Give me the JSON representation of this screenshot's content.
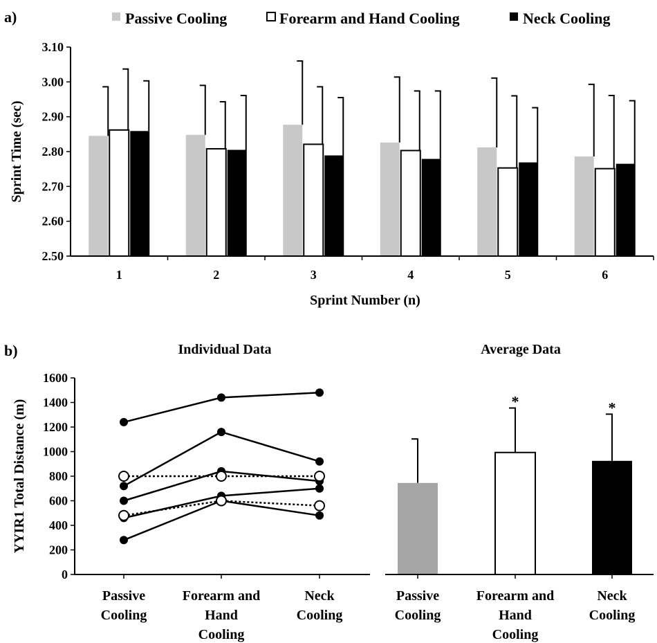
{
  "colors": {
    "passive": "#c8c8c8",
    "passive_b": "#a6a6a6",
    "forearm": "#ffffff",
    "neck": "#000000",
    "axis": "#000000"
  },
  "panel_a": {
    "label": "a)",
    "legend": [
      "Passive Cooling",
      "Forearm and Hand Cooling",
      "Neck Cooling"
    ]
  },
  "panel_b": {
    "label": "b)",
    "individual_title": "Individual Data",
    "average_title": "Average Data",
    "category_lines": [
      [
        "Passive",
        "Cooling"
      ],
      [
        "Forearm and",
        "Hand",
        "Cooling"
      ],
      [
        "Neck",
        "Cooling"
      ]
    ]
  },
  "chart_data": [
    {
      "id": "sprint-times",
      "type": "bar",
      "title": "",
      "xlabel": "Sprint Number (n)",
      "ylabel": "Sprint Time (sec)",
      "categories": [
        "1",
        "2",
        "3",
        "4",
        "5",
        "6"
      ],
      "ylim": [
        2.5,
        3.1
      ],
      "yticks": [
        "2.50",
        "2.60",
        "2.70",
        "2.80",
        "2.90",
        "3.00",
        "3.10"
      ],
      "legend_position": "top",
      "grid": false,
      "series": [
        {
          "name": "Passive Cooling",
          "color": "#c8c8c8",
          "values": [
            2.845,
            2.848,
            2.877,
            2.826,
            2.812,
            2.786
          ],
          "errors": [
            0.141,
            0.142,
            0.183,
            0.188,
            0.199,
            0.207
          ]
        },
        {
          "name": "Forearm and Hand Cooling",
          "color": "#ffffff",
          "values": [
            2.862,
            2.808,
            2.821,
            2.803,
            2.753,
            2.751
          ],
          "errors": [
            0.175,
            0.135,
            0.165,
            0.171,
            0.207,
            0.21
          ]
        },
        {
          "name": "Neck Cooling",
          "color": "#000000",
          "values": [
            2.859,
            2.805,
            2.789,
            2.779,
            2.769,
            2.765
          ],
          "errors": [
            0.144,
            0.156,
            0.166,
            0.195,
            0.157,
            0.181
          ]
        }
      ]
    },
    {
      "id": "individual-distance",
      "type": "line",
      "title": "Individual Data",
      "xlabel": "",
      "ylabel": "YYIR1 Total Distance (m)",
      "categories": [
        "Passive Cooling",
        "Forearm and Hand Cooling",
        "Neck Cooling"
      ],
      "ylim": [
        0,
        1600
      ],
      "yticks": [
        0,
        200,
        400,
        600,
        800,
        1000,
        1200,
        1400,
        1600
      ],
      "grid": false,
      "series": [
        {
          "values": [
            1240,
            1440,
            1480
          ],
          "marker": "filled",
          "style": "solid"
        },
        {
          "values": [
            720,
            1160,
            920
          ],
          "marker": "filled",
          "style": "solid"
        },
        {
          "values": [
            600,
            840,
            760
          ],
          "marker": "filled",
          "style": "solid"
        },
        {
          "values": [
            460,
            640,
            700
          ],
          "marker": "filled",
          "style": "solid"
        },
        {
          "values": [
            280,
            600,
            480
          ],
          "marker": "filled",
          "style": "solid"
        },
        {
          "values": [
            800,
            800,
            800
          ],
          "marker": "open",
          "style": "dotted"
        },
        {
          "values": [
            480,
            600,
            560
          ],
          "marker": "open",
          "style": "dotted"
        }
      ]
    },
    {
      "id": "average-distance",
      "type": "bar",
      "title": "Average Data",
      "xlabel": "",
      "ylabel": "",
      "categories": [
        "Passive Cooling",
        "Forearm and Hand Cooling",
        "Neck Cooling"
      ],
      "ylim": [
        0,
        1600
      ],
      "grid": false,
      "values": [
        745,
        993,
        925
      ],
      "errors": [
        358,
        362,
        380
      ],
      "colors": [
        "#a6a6a6",
        "#ffffff",
        "#000000"
      ],
      "annotations": [
        "",
        "*",
        "*"
      ]
    }
  ]
}
